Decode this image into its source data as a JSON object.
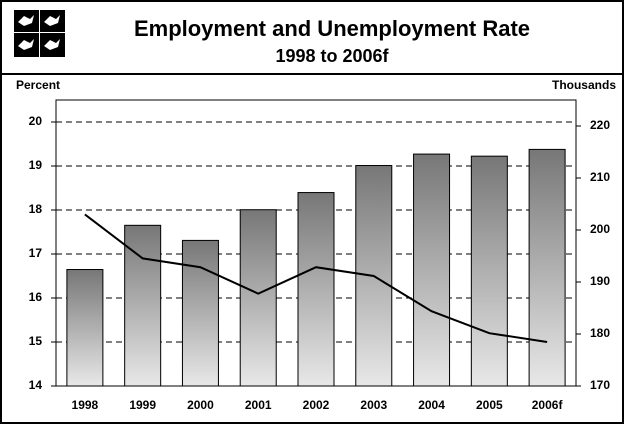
{
  "chart_data": {
    "type": "bar",
    "title": "Employment and Unemployment Rate",
    "subtitle": "1998 to 2006f",
    "y_label": "Percent",
    "y2_label": "Thousands",
    "categories": [
      "1998",
      "1999",
      "2000",
      "2001",
      "2002",
      "2003",
      "2004",
      "2005",
      "2006f"
    ],
    "series": [
      {
        "type": "bar",
        "axis": "y2",
        "color": "#777777",
        "values": [
          192.4,
          200.9,
          198.0,
          203.9,
          207.2,
          212.4,
          214.6,
          214.2,
          215.5
        ]
      },
      {
        "type": "line",
        "color": "#000000",
        "values": [
          17.9,
          16.9,
          16.7,
          16.1,
          16.7,
          16.5,
          15.7,
          15.2,
          15.0
        ]
      }
    ],
    "ylim": [
      14,
      20.5
    ],
    "yticks": [
      14,
      15,
      16,
      17,
      18,
      19,
      20
    ],
    "y2lim": [
      170,
      225
    ],
    "y2ticks": [
      170,
      180,
      190,
      200,
      210,
      220
    ],
    "grid": true
  }
}
